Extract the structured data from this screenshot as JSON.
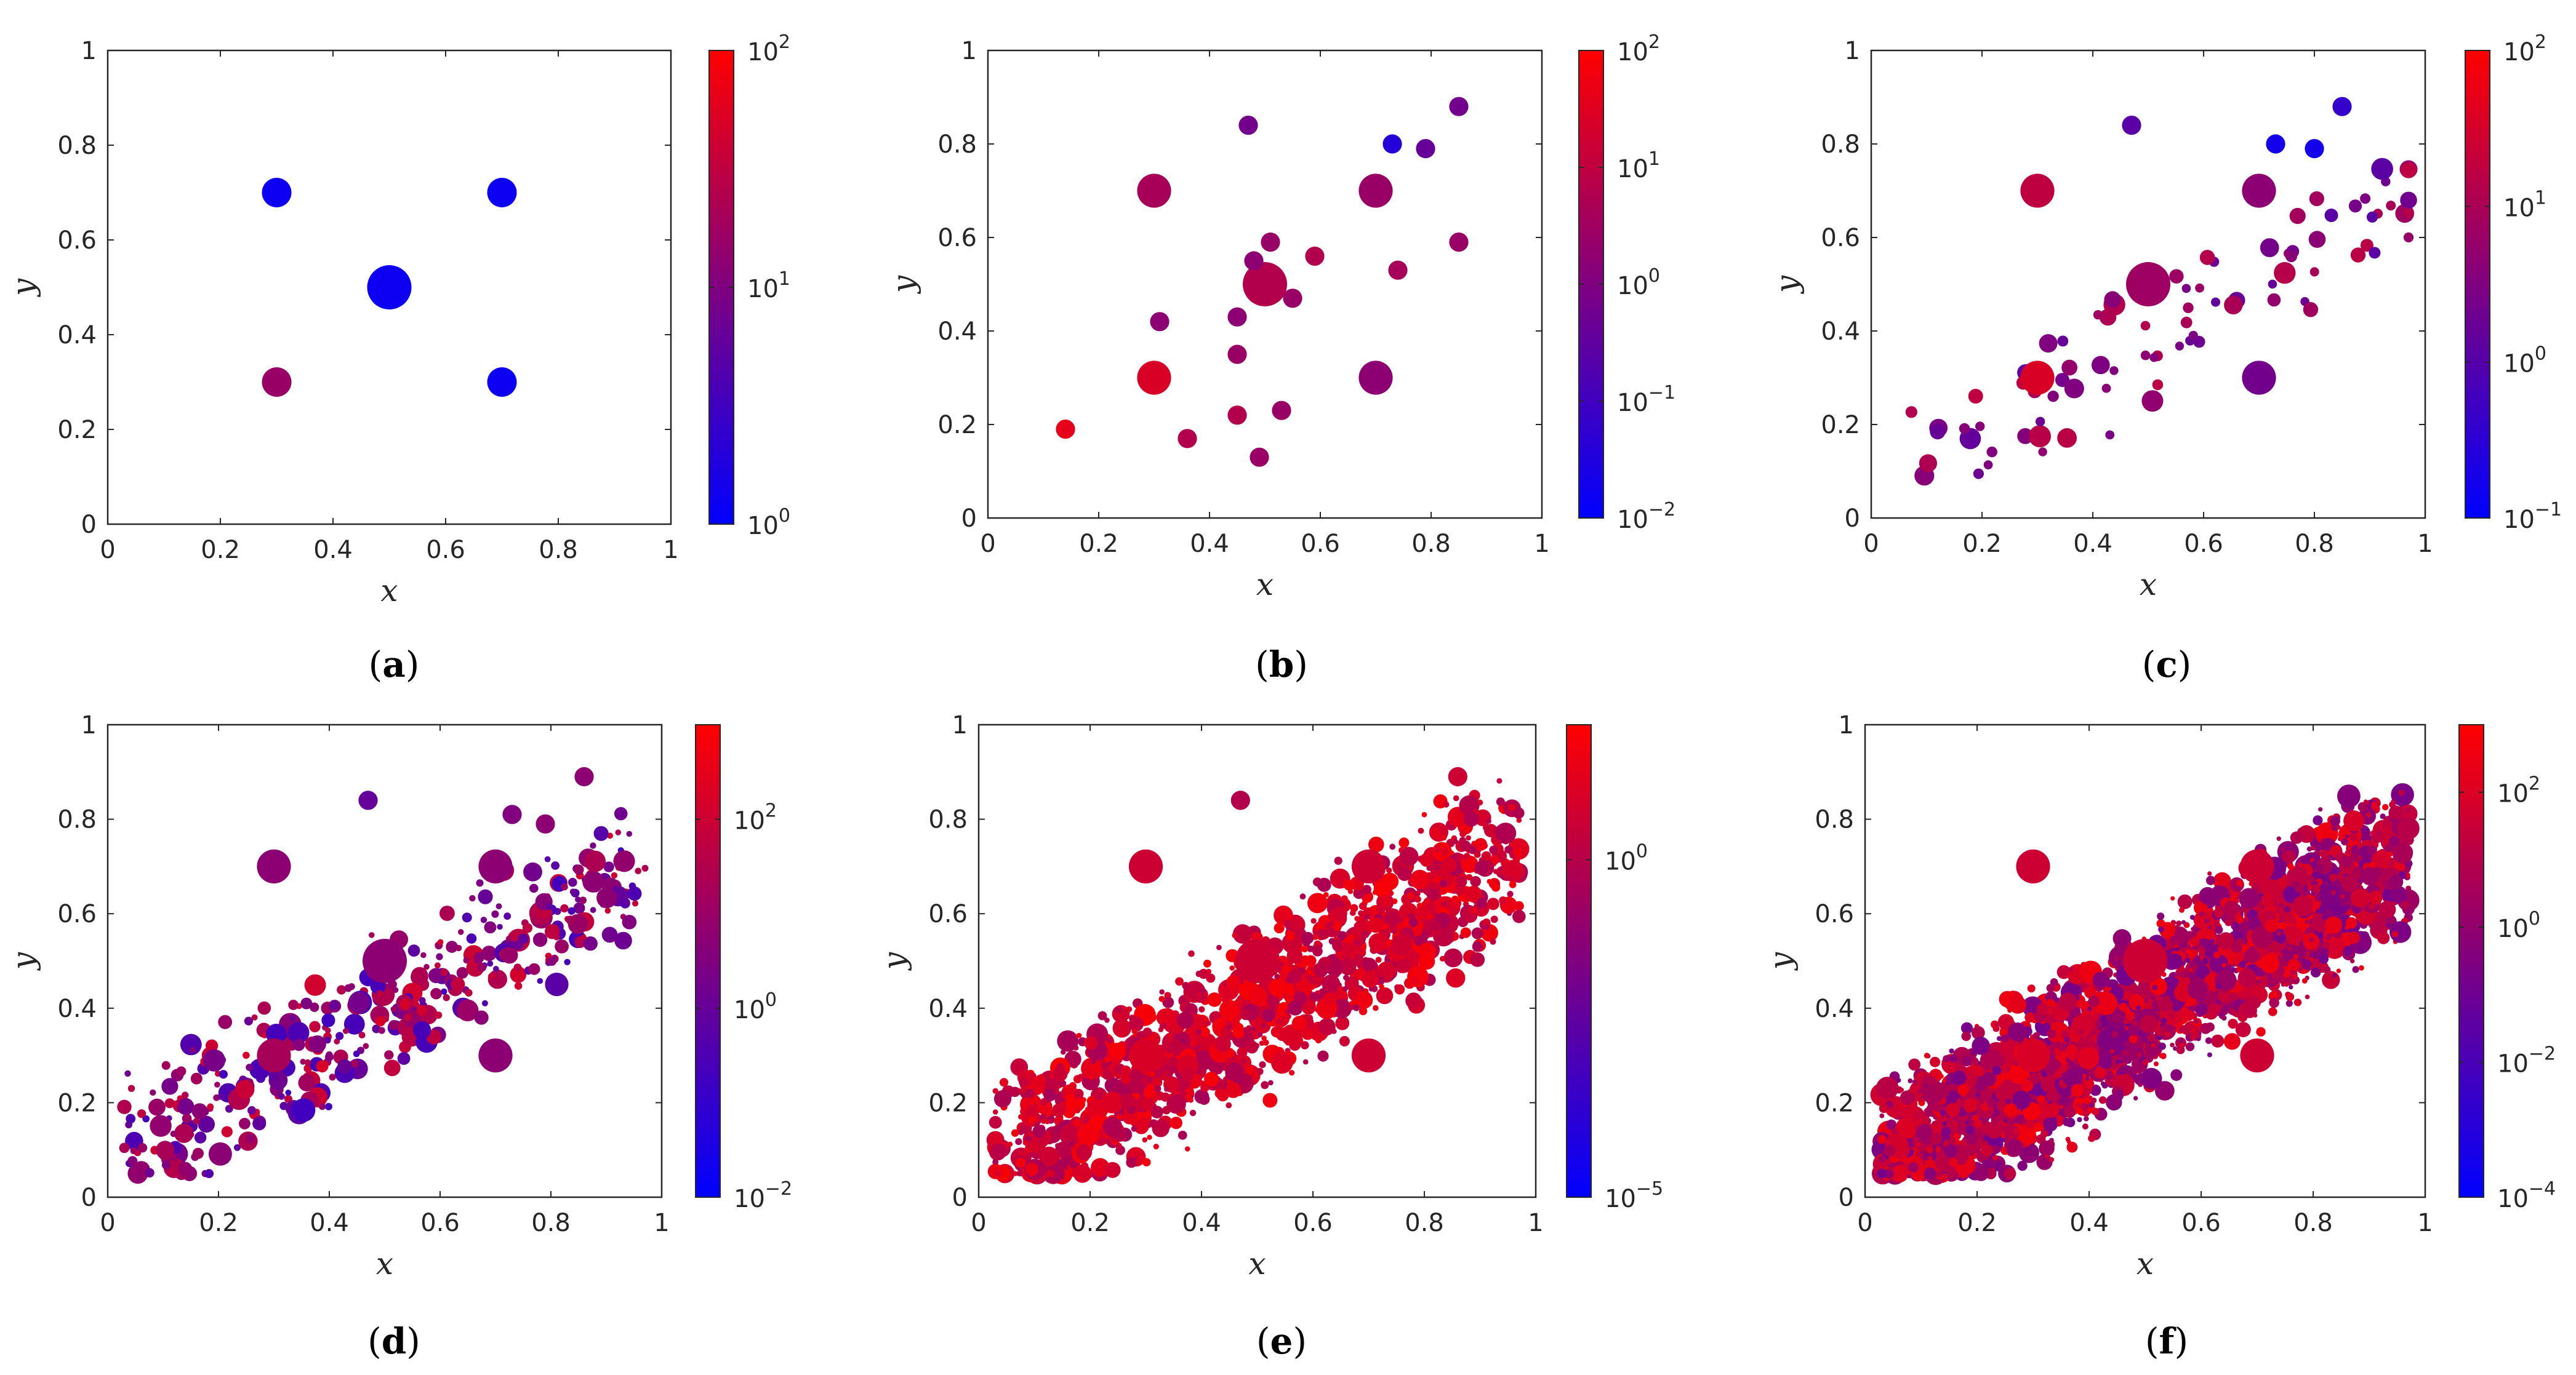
{
  "colors": {
    "low": "#0000ff",
    "high": "#ff0000",
    "axis": "#262626"
  },
  "chart_data": [
    {
      "type": "scatter",
      "label": "a",
      "xlabel": "x",
      "ylabel": "y",
      "xlim": [
        0,
        1
      ],
      "ylim": [
        0,
        1
      ],
      "xticks": [
        "0",
        "0.2",
        "0.4",
        "0.6",
        "0.8",
        "1"
      ],
      "yticks": [
        "0",
        "0.2",
        "0.4",
        "0.6",
        "0.8",
        "1"
      ],
      "colorbar": {
        "scale": "log",
        "min_exp": 0,
        "max_exp": 2,
        "ticks": [
          "0",
          "1",
          "2"
        ]
      },
      "points": [
        {
          "x": 0.5,
          "y": 0.5,
          "r": 3,
          "c": 0.05
        },
        {
          "x": 0.3,
          "y": 0.7,
          "r": 2,
          "c": 0.05
        },
        {
          "x": 0.7,
          "y": 0.7,
          "r": 2,
          "c": 0.05
        },
        {
          "x": 0.7,
          "y": 0.3,
          "r": 2,
          "c": 0.05
        },
        {
          "x": 0.3,
          "y": 0.3,
          "r": 2,
          "c": 0.6
        }
      ]
    },
    {
      "type": "scatter",
      "label": "b",
      "xlabel": "x",
      "ylabel": "y",
      "xlim": [
        0,
        1
      ],
      "ylim": [
        0,
        1
      ],
      "xticks": [
        "0",
        "0.2",
        "0.4",
        "0.6",
        "0.8",
        "1"
      ],
      "yticks": [
        "0",
        "0.2",
        "0.4",
        "0.6",
        "0.8",
        "1"
      ],
      "colorbar": {
        "scale": "log",
        "min_exp": -2,
        "max_exp": 2,
        "ticks": [
          "2",
          "1",
          "0",
          "−1",
          "−2"
        ]
      },
      "points": [
        {
          "x": 0.5,
          "y": 0.5,
          "r": 3,
          "c": 0.7
        },
        {
          "x": 0.3,
          "y": 0.7,
          "r": 2.3,
          "c": 0.65
        },
        {
          "x": 0.7,
          "y": 0.7,
          "r": 2.3,
          "c": 0.6
        },
        {
          "x": 0.7,
          "y": 0.3,
          "r": 2.3,
          "c": 0.55
        },
        {
          "x": 0.3,
          "y": 0.3,
          "r": 2.3,
          "c": 0.85
        },
        {
          "x": 0.47,
          "y": 0.84,
          "r": 1.3,
          "c": 0.45
        },
        {
          "x": 0.73,
          "y": 0.8,
          "r": 1.3,
          "c": 0.15
        },
        {
          "x": 0.79,
          "y": 0.79,
          "r": 1.3,
          "c": 0.4
        },
        {
          "x": 0.85,
          "y": 0.88,
          "r": 1.3,
          "c": 0.45
        },
        {
          "x": 0.51,
          "y": 0.59,
          "r": 1.3,
          "c": 0.6
        },
        {
          "x": 0.48,
          "y": 0.55,
          "r": 1.3,
          "c": 0.55
        },
        {
          "x": 0.59,
          "y": 0.56,
          "r": 1.3,
          "c": 0.7
        },
        {
          "x": 0.74,
          "y": 0.53,
          "r": 1.3,
          "c": 0.65
        },
        {
          "x": 0.85,
          "y": 0.59,
          "r": 1.3,
          "c": 0.6
        },
        {
          "x": 0.55,
          "y": 0.47,
          "r": 1.3,
          "c": 0.6
        },
        {
          "x": 0.45,
          "y": 0.43,
          "r": 1.3,
          "c": 0.55
        },
        {
          "x": 0.31,
          "y": 0.42,
          "r": 1.3,
          "c": 0.55
        },
        {
          "x": 0.45,
          "y": 0.35,
          "r": 1.3,
          "c": 0.6
        },
        {
          "x": 0.53,
          "y": 0.23,
          "r": 1.3,
          "c": 0.6
        },
        {
          "x": 0.45,
          "y": 0.22,
          "r": 1.3,
          "c": 0.7
        },
        {
          "x": 0.36,
          "y": 0.17,
          "r": 1.3,
          "c": 0.7
        },
        {
          "x": 0.49,
          "y": 0.13,
          "r": 1.3,
          "c": 0.6
        },
        {
          "x": 0.14,
          "y": 0.19,
          "r": 1.3,
          "c": 0.9
        }
      ]
    },
    {
      "type": "scatter",
      "label": "c",
      "xlabel": "x",
      "ylabel": "y",
      "xlim": [
        0,
        1
      ],
      "ylim": [
        0,
        1
      ],
      "xticks": [
        "0",
        "0.2",
        "0.4",
        "0.6",
        "0.8",
        "1"
      ],
      "yticks": [
        "0",
        "0.2",
        "0.4",
        "0.6",
        "0.8",
        "1"
      ],
      "colorbar": {
        "scale": "log",
        "min_exp": -1,
        "max_exp": 2,
        "ticks": [
          "2",
          "1",
          "0",
          "−1"
        ]
      },
      "points": [
        {
          "x": 0.5,
          "y": 0.5,
          "r": 3,
          "c": 0.62
        },
        {
          "x": 0.3,
          "y": 0.7,
          "r": 2.3,
          "c": 0.75
        },
        {
          "x": 0.7,
          "y": 0.7,
          "r": 2.3,
          "c": 0.55
        },
        {
          "x": 0.7,
          "y": 0.3,
          "r": 2.3,
          "c": 0.45
        },
        {
          "x": 0.3,
          "y": 0.3,
          "r": 2.3,
          "c": 0.85
        },
        {
          "x": 0.47,
          "y": 0.84,
          "r": 1.3,
          "c": 0.35
        },
        {
          "x": 0.73,
          "y": 0.8,
          "r": 1.3,
          "c": 0.08
        },
        {
          "x": 0.8,
          "y": 0.79,
          "r": 1.3,
          "c": 0.08
        },
        {
          "x": 0.85,
          "y": 0.88,
          "r": 1.3,
          "c": 0.2
        }
      ],
      "random": {
        "seed": 3,
        "n": 85,
        "xc": 0.55,
        "yc": 0.42,
        "slope": 0.55,
        "spread": 0.12,
        "cmin": 0.35,
        "cmax": 0.75,
        "rmin": 0.6,
        "rmax": 1.5
      }
    },
    {
      "type": "scatter",
      "label": "d",
      "xlabel": "x",
      "ylabel": "y",
      "xlim": [
        0,
        1
      ],
      "ylim": [
        0,
        1
      ],
      "xticks": [
        "0",
        "0.2",
        "0.4",
        "0.6",
        "0.8",
        "1"
      ],
      "yticks": [
        "0",
        "0.2",
        "0.4",
        "0.6",
        "0.8",
        "1"
      ],
      "colorbar": {
        "scale": "log",
        "min_exp": -2,
        "max_exp": 3,
        "ticks": [
          "2",
          "0",
          "−2"
        ]
      },
      "points": [
        {
          "x": 0.5,
          "y": 0.5,
          "r": 3,
          "c": 0.55
        },
        {
          "x": 0.3,
          "y": 0.7,
          "r": 2.3,
          "c": 0.55
        },
        {
          "x": 0.7,
          "y": 0.7,
          "r": 2.3,
          "c": 0.55
        },
        {
          "x": 0.7,
          "y": 0.3,
          "r": 2.3,
          "c": 0.55
        },
        {
          "x": 0.3,
          "y": 0.3,
          "r": 2.3,
          "c": 0.65
        },
        {
          "x": 0.47,
          "y": 0.84,
          "r": 1.3,
          "c": 0.4
        },
        {
          "x": 0.86,
          "y": 0.89,
          "r": 1.3,
          "c": 0.55
        },
        {
          "x": 0.79,
          "y": 0.79,
          "r": 1.3,
          "c": 0.55
        },
        {
          "x": 0.73,
          "y": 0.81,
          "r": 1.3,
          "c": 0.5
        }
      ],
      "random": {
        "seed": 7,
        "n": 420,
        "xc": 0.5,
        "yc": 0.4,
        "slope": 0.55,
        "spread": 0.12,
        "cmin": 0.25,
        "cmax": 0.85,
        "rmin": 0.4,
        "rmax": 1.6
      }
    },
    {
      "type": "scatter",
      "label": "e",
      "xlabel": "x",
      "ylabel": "y",
      "xlim": [
        0,
        1
      ],
      "ylim": [
        0,
        1
      ],
      "xticks": [
        "0",
        "0.2",
        "0.4",
        "0.6",
        "0.8",
        "1"
      ],
      "yticks": [
        "0",
        "0.2",
        "0.4",
        "0.6",
        "0.8",
        "1"
      ],
      "colorbar": {
        "scale": "log",
        "min_exp": -5,
        "max_exp": 2,
        "ticks": [
          "0",
          "−5"
        ]
      },
      "points": [
        {
          "x": 0.5,
          "y": 0.5,
          "r": 3,
          "c": 0.8
        },
        {
          "x": 0.3,
          "y": 0.7,
          "r": 2.3,
          "c": 0.8
        },
        {
          "x": 0.7,
          "y": 0.7,
          "r": 2.3,
          "c": 0.8
        },
        {
          "x": 0.7,
          "y": 0.3,
          "r": 2.3,
          "c": 0.8
        },
        {
          "x": 0.3,
          "y": 0.3,
          "r": 2.3,
          "c": 0.85
        },
        {
          "x": 0.47,
          "y": 0.84,
          "r": 1.3,
          "c": 0.7
        },
        {
          "x": 0.86,
          "y": 0.89,
          "r": 1.3,
          "c": 0.8
        }
      ],
      "random": {
        "seed": 11,
        "n": 1400,
        "xc": 0.5,
        "yc": 0.4,
        "slope": 0.6,
        "spread": 0.13,
        "cmin": 0.65,
        "cmax": 0.98,
        "rmin": 0.35,
        "rmax": 1.5
      }
    },
    {
      "type": "scatter",
      "label": "f",
      "xlabel": "x",
      "ylabel": "y",
      "xlim": [
        0,
        1
      ],
      "ylim": [
        0,
        1
      ],
      "xticks": [
        "0",
        "0.2",
        "0.4",
        "0.6",
        "0.8",
        "1"
      ],
      "yticks": [
        "0",
        "0.2",
        "0.4",
        "0.6",
        "0.8",
        "1"
      ],
      "colorbar": {
        "scale": "log",
        "min_exp": -4,
        "max_exp": 3,
        "ticks": [
          "2",
          "0",
          "−2",
          "−4"
        ]
      },
      "points": [
        {
          "x": 0.5,
          "y": 0.5,
          "r": 3,
          "c": 0.8
        },
        {
          "x": 0.3,
          "y": 0.7,
          "r": 2.3,
          "c": 0.8
        },
        {
          "x": 0.7,
          "y": 0.7,
          "r": 2.3,
          "c": 0.8
        },
        {
          "x": 0.7,
          "y": 0.3,
          "r": 2.3,
          "c": 0.8
        },
        {
          "x": 0.3,
          "y": 0.3,
          "r": 2.3,
          "c": 0.85
        }
      ],
      "random": {
        "seed": 19,
        "n": 2600,
        "xc": 0.5,
        "yc": 0.4,
        "slope": 0.6,
        "spread": 0.13,
        "cmin": 0.45,
        "cmax": 0.95,
        "rmin": 0.3,
        "rmax": 1.6
      }
    }
  ]
}
